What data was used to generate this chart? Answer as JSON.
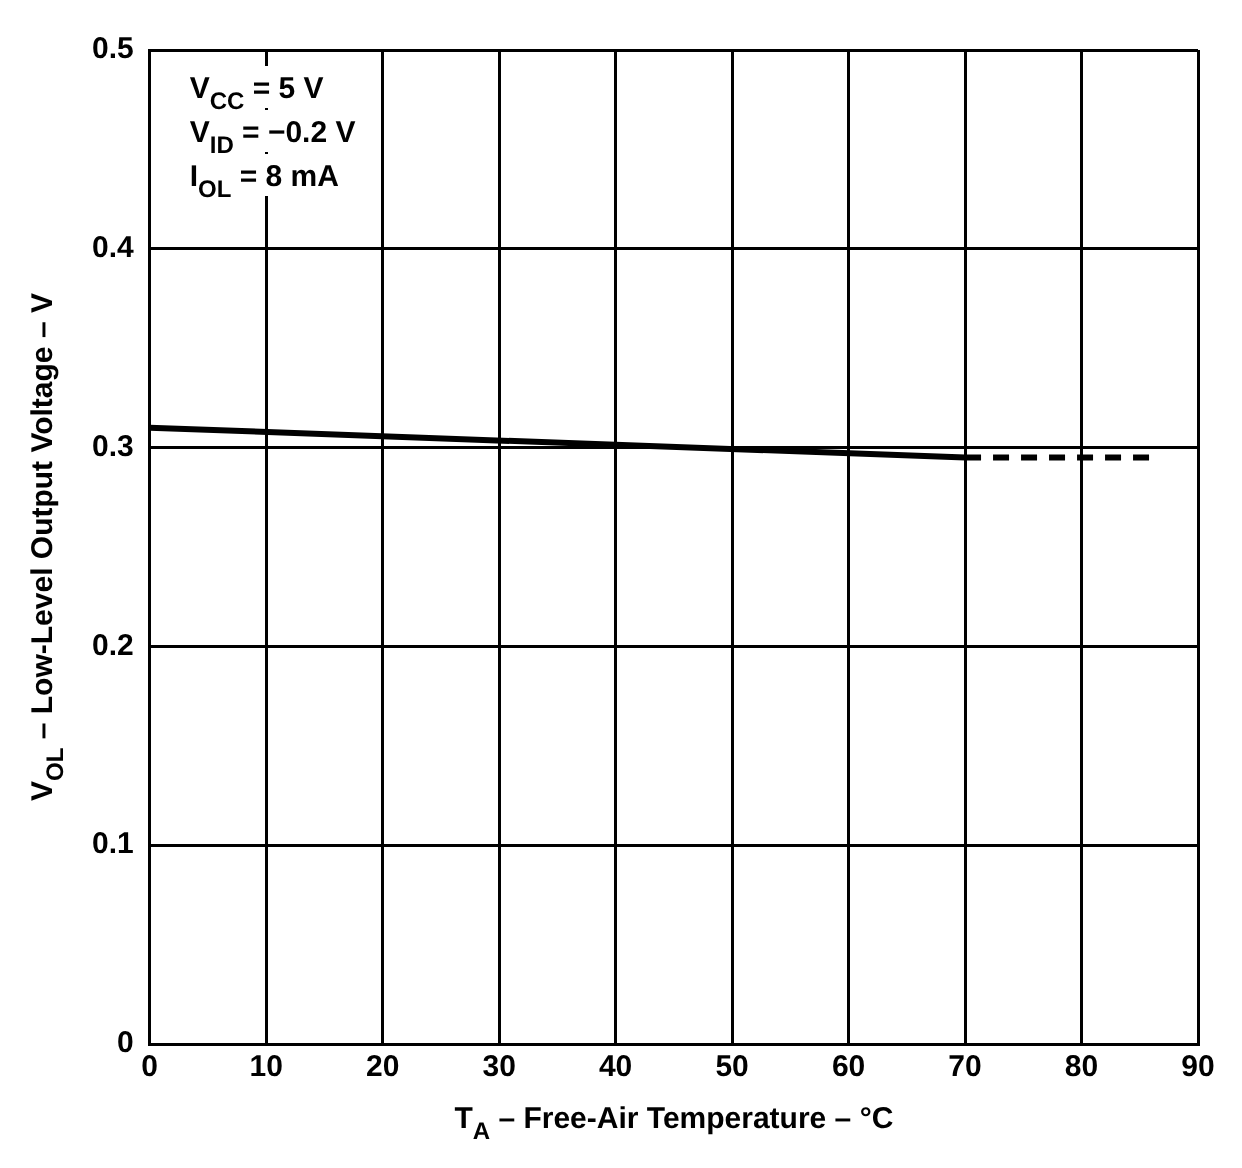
{
  "chart_data": {
    "type": "line",
    "xlabel": "T$_{A}$ – Free-Air Temperature – °C",
    "ylabel": "V$_{OL}$ – Low-Level Output Voltage – V",
    "annotations": [
      "V$_{CC}$ = 5 V",
      "V$_{ID}$ = −0.2 V",
      "I$_{OL}$ = 8 mA"
    ],
    "series": [
      {
        "color": "#000000",
        "line_style": "solid",
        "x": [
          0,
          70
        ],
        "values": [
          0.31,
          0.295
        ]
      },
      {
        "color": "#000000",
        "line_style": "dashed",
        "x": [
          70,
          86
        ],
        "values": [
          0.295,
          0.295
        ]
      }
    ],
    "xlim": [
      0,
      90
    ],
    "xticks": [
      0,
      10,
      20,
      30,
      40,
      50,
      60,
      70,
      80,
      90
    ],
    "ylim": [
      0,
      0.5
    ],
    "yticks": [
      0,
      0.1,
      0.2,
      0.3,
      0.4,
      0.5
    ],
    "grid": true,
    "legend": false,
    "marker": "none"
  }
}
